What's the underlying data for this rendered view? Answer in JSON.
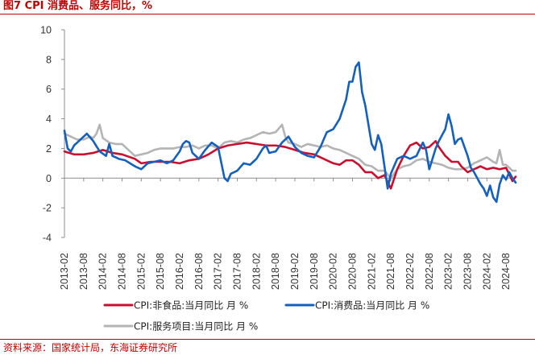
{
  "figure": {
    "title": "图7  CPI 消费品、服务同比，%",
    "source": "资料来源：国家统计局，东海证券研究所"
  },
  "chart_data": {
    "type": "line",
    "title": "图7  CPI 消费品、服务同比，%",
    "xlabel": "",
    "ylabel": "%",
    "ylim": [
      -4,
      10
    ],
    "yticks": [
      "10",
      "8",
      "6",
      "4",
      "2",
      "0",
      "-2",
      "-4"
    ],
    "x_start": "2013-02",
    "n_months": 142,
    "xtick_labels": [
      "2013-02",
      "2013-08",
      "2014-02",
      "2014-08",
      "2015-02",
      "2015-08",
      "2016-02",
      "2016-08",
      "2017-02",
      "2017-08",
      "2018-02",
      "2018-08",
      "2019-02",
      "2019-08",
      "2020-02",
      "2020-08",
      "2021-02",
      "2021-08",
      "2022-02",
      "2022-08",
      "2023-02",
      "2023-08",
      "2024-02",
      "2024-08"
    ],
    "legend_position": "bottom",
    "series": [
      {
        "name": "CPI:非食品:当月同比 月 %",
        "color": "#c8102e",
        "anchors": [
          [
            0,
            1.8
          ],
          [
            3,
            1.6
          ],
          [
            6,
            1.6
          ],
          [
            9,
            1.7
          ],
          [
            12,
            1.9
          ],
          [
            15,
            1.7
          ],
          [
            18,
            1.6
          ],
          [
            22,
            1.3
          ],
          [
            24,
            1.0
          ],
          [
            27,
            1.1
          ],
          [
            30,
            1.1
          ],
          [
            33,
            1.1
          ],
          [
            36,
            1.0
          ],
          [
            39,
            1.2
          ],
          [
            42,
            1.3
          ],
          [
            45,
            1.6
          ],
          [
            48,
            2.0
          ],
          [
            51,
            2.2
          ],
          [
            54,
            2.3
          ],
          [
            57,
            2.4
          ],
          [
            60,
            2.3
          ],
          [
            63,
            2.2
          ],
          [
            66,
            2.2
          ],
          [
            69,
            2.1
          ],
          [
            72,
            1.9
          ],
          [
            75,
            1.7
          ],
          [
            78,
            1.6
          ],
          [
            81,
            1.3
          ],
          [
            84,
            1.0
          ],
          [
            86,
            0.9
          ],
          [
            88,
            1.2
          ],
          [
            90,
            1.2
          ],
          [
            92,
            0.9
          ],
          [
            94,
            0.4
          ],
          [
            96,
            0.4
          ],
          [
            98,
            0.0
          ],
          [
            100,
            0.2
          ],
          [
            102,
            -0.7
          ],
          [
            104,
            0.6
          ],
          [
            106,
            1.5
          ],
          [
            108,
            2.2
          ],
          [
            110,
            2.4
          ],
          [
            112,
            2.0
          ],
          [
            114,
            2.1
          ],
          [
            116,
            2.5
          ],
          [
            117,
            2.1
          ],
          [
            119,
            1.5
          ],
          [
            121,
            1.1
          ],
          [
            123,
            1.1
          ],
          [
            124,
            0.8
          ],
          [
            126,
            0.4
          ],
          [
            128,
            0.6
          ],
          [
            130,
            0.8
          ],
          [
            132,
            0.6
          ],
          [
            134,
            0.7
          ],
          [
            136,
            0.6
          ],
          [
            138,
            0.7
          ],
          [
            140,
            -0.2
          ],
          [
            141,
            0.1
          ]
        ]
      },
      {
        "name": "CPI:消费品:当月同比 月 %",
        "color": "#1560bd",
        "anchors": [
          [
            0,
            3.2
          ],
          [
            1,
            2.0
          ],
          [
            2,
            1.8
          ],
          [
            3,
            2.2
          ],
          [
            5,
            2.6
          ],
          [
            7,
            3.0
          ],
          [
            9,
            2.5
          ],
          [
            11,
            1.8
          ],
          [
            13,
            1.5
          ],
          [
            14,
            2.3
          ],
          [
            15,
            1.5
          ],
          [
            17,
            1.3
          ],
          [
            19,
            1.2
          ],
          [
            22,
            0.8
          ],
          [
            24,
            0.6
          ],
          [
            26,
            1.0
          ],
          [
            28,
            1.1
          ],
          [
            30,
            1.2
          ],
          [
            32,
            1.0
          ],
          [
            34,
            1.2
          ],
          [
            36,
            1.8
          ],
          [
            37,
            2.3
          ],
          [
            38,
            2.5
          ],
          [
            39,
            2.4
          ],
          [
            40,
            1.7
          ],
          [
            41,
            1.5
          ],
          [
            42,
            1.3
          ],
          [
            44,
            1.9
          ],
          [
            46,
            2.4
          ],
          [
            48,
            2.1
          ],
          [
            50,
            0.0
          ],
          [
            51,
            -0.2
          ],
          [
            52,
            0.3
          ],
          [
            54,
            0.5
          ],
          [
            56,
            1.0
          ],
          [
            58,
            0.9
          ],
          [
            60,
            1.3
          ],
          [
            62,
            2.0
          ],
          [
            63,
            2.2
          ],
          [
            64,
            1.7
          ],
          [
            66,
            1.8
          ],
          [
            68,
            2.4
          ],
          [
            70,
            2.8
          ],
          [
            72,
            2.1
          ],
          [
            74,
            1.7
          ],
          [
            76,
            1.5
          ],
          [
            78,
            1.4
          ],
          [
            80,
            2.1
          ],
          [
            82,
            3.1
          ],
          [
            84,
            3.3
          ],
          [
            86,
            4.0
          ],
          [
            88,
            5.3
          ],
          [
            89,
            6.5
          ],
          [
            90,
            6.5
          ],
          [
            91,
            7.5
          ],
          [
            92,
            7.8
          ],
          [
            93,
            5.8
          ],
          [
            94,
            4.9
          ],
          [
            96,
            2.3
          ],
          [
            97,
            1.9
          ],
          [
            98,
            2.9
          ],
          [
            99,
            2.3
          ],
          [
            100,
            0.8
          ],
          [
            101,
            -0.7
          ],
          [
            102,
            0.3
          ],
          [
            104,
            1.3
          ],
          [
            106,
            1.5
          ],
          [
            108,
            1.3
          ],
          [
            110,
            1.5
          ],
          [
            112,
            2.4
          ],
          [
            113,
            1.9
          ],
          [
            114,
            0.6
          ],
          [
            115,
            1.3
          ],
          [
            116,
            2.0
          ],
          [
            117,
            2.5
          ],
          [
            118,
            2.9
          ],
          [
            119,
            3.3
          ],
          [
            120,
            4.3
          ],
          [
            121,
            3.5
          ],
          [
            122,
            2.3
          ],
          [
            123,
            2.6
          ],
          [
            124,
            2.7
          ],
          [
            126,
            1.5
          ],
          [
            127,
            0.7
          ],
          [
            128,
            0.4
          ],
          [
            130,
            -0.4
          ],
          [
            131,
            -0.7
          ],
          [
            132,
            -1.2
          ],
          [
            133,
            -0.5
          ],
          [
            134,
            -1.3
          ],
          [
            135,
            -1.6
          ],
          [
            136,
            -0.4
          ],
          [
            137,
            0.2
          ],
          [
            138,
            -0.1
          ],
          [
            139,
            0.4
          ],
          [
            140,
            0.0
          ],
          [
            141,
            -0.3
          ]
        ]
      },
      {
        "name": "CPI:服务项目:当月同比 月 %",
        "color": "#b4b4b4",
        "anchors": [
          [
            0,
            3.0
          ],
          [
            2,
            2.8
          ],
          [
            4,
            2.6
          ],
          [
            6,
            2.6
          ],
          [
            8,
            2.8
          ],
          [
            9,
            2.7
          ],
          [
            10,
            3.0
          ],
          [
            11,
            3.6
          ],
          [
            12,
            2.7
          ],
          [
            14,
            2.4
          ],
          [
            16,
            2.3
          ],
          [
            18,
            2.3
          ],
          [
            20,
            1.9
          ],
          [
            22,
            1.5
          ],
          [
            24,
            1.6
          ],
          [
            26,
            1.7
          ],
          [
            28,
            1.9
          ],
          [
            30,
            2.0
          ],
          [
            32,
            2.0
          ],
          [
            34,
            2.0
          ],
          [
            36,
            2.1
          ],
          [
            38,
            2.1
          ],
          [
            40,
            2.2
          ],
          [
            42,
            2.0
          ],
          [
            44,
            2.2
          ],
          [
            46,
            2.2
          ],
          [
            48,
            2.0
          ],
          [
            50,
            2.4
          ],
          [
            52,
            2.5
          ],
          [
            54,
            2.4
          ],
          [
            56,
            2.6
          ],
          [
            58,
            2.7
          ],
          [
            60,
            2.9
          ],
          [
            62,
            3.1
          ],
          [
            64,
            3.0
          ],
          [
            66,
            3.1
          ],
          [
            68,
            3.6
          ],
          [
            69,
            2.8
          ],
          [
            70,
            2.4
          ],
          [
            72,
            2.3
          ],
          [
            74,
            2.1
          ],
          [
            76,
            2.3
          ],
          [
            78,
            2.2
          ],
          [
            80,
            2.1
          ],
          [
            82,
            2.2
          ],
          [
            84,
            2.0
          ],
          [
            86,
            1.9
          ],
          [
            88,
            1.7
          ],
          [
            90,
            1.5
          ],
          [
            92,
            1.3
          ],
          [
            94,
            0.9
          ],
          [
            96,
            0.8
          ],
          [
            98,
            0.5
          ],
          [
            100,
            0.5
          ],
          [
            102,
            0.0
          ],
          [
            104,
            0.6
          ],
          [
            106,
            0.8
          ],
          [
            108,
            0.9
          ],
          [
            110,
            1.2
          ],
          [
            112,
            1.3
          ],
          [
            114,
            1.1
          ],
          [
            116,
            1.0
          ],
          [
            118,
            0.9
          ],
          [
            120,
            0.7
          ],
          [
            122,
            0.6
          ],
          [
            124,
            0.6
          ],
          [
            126,
            0.7
          ],
          [
            128,
            1.0
          ],
          [
            130,
            1.2
          ],
          [
            132,
            1.4
          ],
          [
            134,
            1.1
          ],
          [
            135,
            1.0
          ],
          [
            136,
            1.9
          ],
          [
            137,
            0.9
          ],
          [
            138,
            0.9
          ],
          [
            140,
            0.5
          ],
          [
            141,
            0.5
          ]
        ]
      }
    ]
  }
}
